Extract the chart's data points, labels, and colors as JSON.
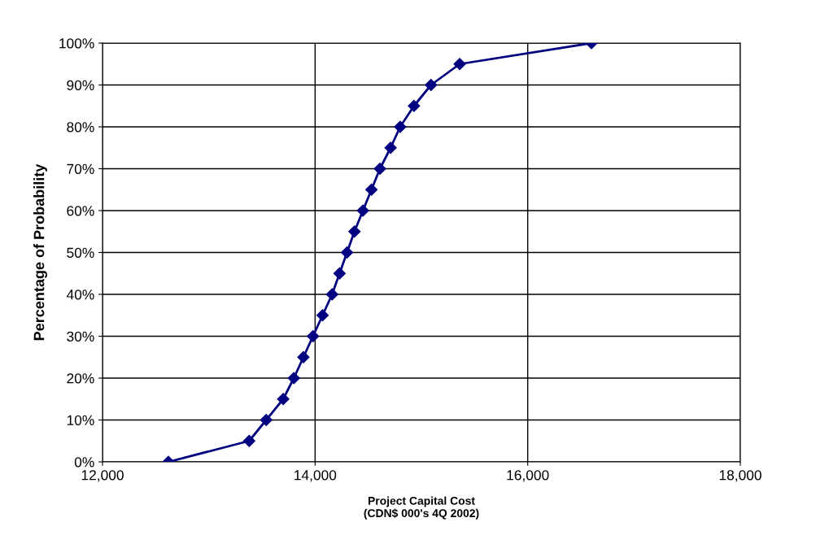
{
  "chart_data": {
    "type": "line",
    "xlabel": "Project Capital Cost\n(CDN$ 000's 4Q 2002)",
    "ylabel": "Percentage of Probability",
    "x": [
      12620,
      13380,
      13540,
      13700,
      13800,
      13890,
      13980,
      14070,
      14160,
      14230,
      14300,
      14370,
      14450,
      14530,
      14610,
      14710,
      14800,
      14930,
      15090,
      15360,
      16600
    ],
    "series": [
      {
        "color": "#000080",
        "values": [
          0,
          5,
          10,
          15,
          20,
          25,
          30,
          35,
          40,
          45,
          50,
          55,
          60,
          65,
          70,
          75,
          80,
          85,
          90,
          95,
          100
        ]
      }
    ],
    "xlim": [
      12000,
      18000
    ],
    "xticks": [
      {
        "value": 12000,
        "label": "12,000"
      },
      {
        "value": 14000,
        "label": "14,000"
      },
      {
        "value": 16000,
        "label": "16,000"
      },
      {
        "value": 18000,
        "label": "18,000"
      }
    ],
    "ylim": [
      0,
      100
    ],
    "yticks": [
      {
        "value": 0,
        "label": "0%"
      },
      {
        "value": 10,
        "label": "10%"
      },
      {
        "value": 20,
        "label": "20%"
      },
      {
        "value": 30,
        "label": "30%"
      },
      {
        "value": 40,
        "label": "40%"
      },
      {
        "value": 50,
        "label": "50%"
      },
      {
        "value": 60,
        "label": "60%"
      },
      {
        "value": 70,
        "label": "70%"
      },
      {
        "value": 80,
        "label": "80%"
      },
      {
        "value": 90,
        "label": "90%"
      },
      {
        "value": 100,
        "label": "100%"
      }
    ],
    "grid": true,
    "marker": "diamond",
    "line_style": "solid",
    "legend": false
  }
}
